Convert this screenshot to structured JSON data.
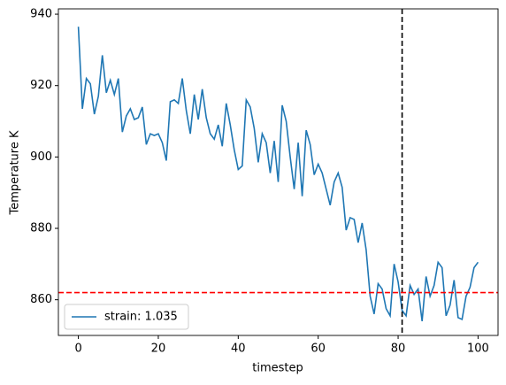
{
  "chart_data": {
    "type": "line",
    "xlabel": "timestep",
    "ylabel": "Temperature K",
    "x": [
      0,
      1,
      2,
      3,
      4,
      5,
      6,
      7,
      8,
      9,
      10,
      11,
      12,
      13,
      14,
      15,
      16,
      17,
      18,
      19,
      20,
      21,
      22,
      23,
      24,
      25,
      26,
      27,
      28,
      29,
      30,
      31,
      32,
      33,
      34,
      35,
      36,
      37,
      38,
      39,
      40,
      41,
      42,
      43,
      44,
      45,
      46,
      47,
      48,
      49,
      50,
      51,
      52,
      53,
      54,
      55,
      56,
      57,
      58,
      59,
      60,
      61,
      62,
      63,
      64,
      65,
      66,
      67,
      68,
      69,
      70,
      71,
      72,
      73,
      74,
      75,
      76,
      77,
      78,
      79,
      80,
      81,
      82,
      83,
      84,
      85,
      86,
      87,
      88,
      89,
      90,
      91,
      92,
      93,
      94,
      95,
      96,
      97,
      98,
      99,
      100
    ],
    "series": [
      {
        "name": "strain: 1.035",
        "color": "#1f77b4",
        "values": [
          936.5,
          913.5,
          922,
          920.5,
          912,
          917,
          928.5,
          918,
          921.5,
          917.5,
          922,
          907,
          911.5,
          913.5,
          910.5,
          911,
          914,
          903.5,
          906.5,
          906,
          906.5,
          904,
          899,
          915.5,
          916,
          915,
          922,
          913,
          906.5,
          917.5,
          910.5,
          919,
          911,
          906.5,
          905,
          909,
          903,
          915,
          909,
          902,
          896.5,
          897.5,
          916,
          914,
          908,
          898.5,
          906.5,
          904,
          895.5,
          904.5,
          893,
          914.5,
          910,
          900,
          891,
          904,
          889,
          907.5,
          903.5,
          895,
          898,
          895.5,
          891,
          886.5,
          893,
          895.5,
          891.5,
          879.5,
          883,
          882.5,
          876,
          881.5,
          874,
          861,
          856,
          864.5,
          863,
          857.5,
          855.5,
          870,
          865,
          857,
          855.5,
          864,
          861.5,
          863,
          854,
          866.5,
          861,
          864,
          870.5,
          869,
          855.5,
          858.5,
          865.5,
          855,
          854.5,
          861,
          863.5,
          869,
          870.5
        ]
      }
    ],
    "vlines": [
      {
        "x": 81,
        "color": "#000000"
      }
    ],
    "hlines": [
      {
        "y": 862,
        "color": "#ff0000"
      }
    ],
    "xlim": [
      -5,
      105
    ],
    "xticks": [
      0,
      20,
      40,
      60,
      80,
      100
    ],
    "ylim": [
      850,
      941.5
    ],
    "yticks": [
      860,
      880,
      900,
      920,
      940
    ],
    "legend": "lower left",
    "grid": false
  }
}
